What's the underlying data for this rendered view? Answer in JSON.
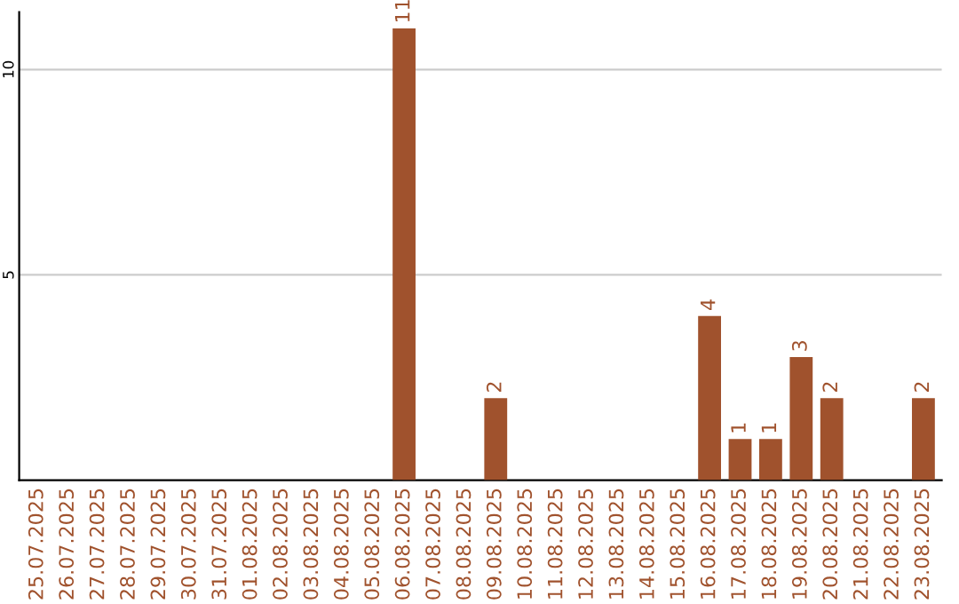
{
  "chart_data": {
    "type": "bar",
    "categories": [
      "25.07.2025",
      "26.07.2025",
      "27.07.2025",
      "28.07.2025",
      "29.07.2025",
      "30.07.2025",
      "31.07.2025",
      "01.08.2025",
      "02.08.2025",
      "03.08.2025",
      "04.08.2025",
      "05.08.2025",
      "06.08.2025",
      "07.08.2025",
      "08.08.2025",
      "09.08.2025",
      "10.08.2025",
      "11.08.2025",
      "12.08.2025",
      "13.08.2025",
      "14.08.2025",
      "15.08.2025",
      "16.08.2025",
      "17.08.2025",
      "18.08.2025",
      "19.08.2025",
      "20.08.2025",
      "21.08.2025",
      "22.08.2025",
      "23.08.2025"
    ],
    "values": [
      0,
      0,
      0,
      0,
      0,
      0,
      0,
      0,
      0,
      0,
      0,
      0,
      11,
      0,
      0,
      2,
      0,
      0,
      0,
      0,
      0,
      0,
      4,
      1,
      1,
      3,
      2,
      0,
      0,
      2
    ],
    "value_labels": [
      null,
      null,
      null,
      null,
      null,
      null,
      null,
      null,
      null,
      null,
      null,
      null,
      "11",
      null,
      null,
      "2",
      null,
      null,
      null,
      null,
      null,
      null,
      "4",
      "1",
      "1",
      "3",
      "2",
      null,
      null,
      "2"
    ],
    "color": "#a0522d",
    "ylim": [
      0,
      11.4
    ],
    "yticks": [
      5,
      10
    ],
    "grid": "y",
    "legend": false
  }
}
